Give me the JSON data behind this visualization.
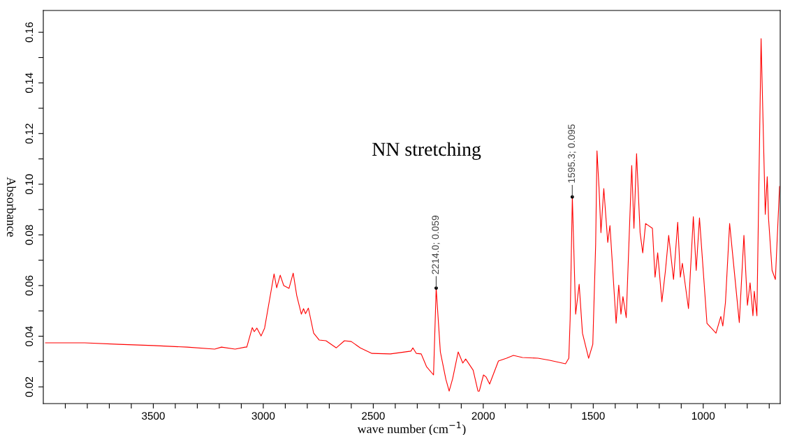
{
  "chart_data": {
    "type": "line",
    "xlabel": "wave number (cm$^{−1}$)",
    "ylabel": "Absorbance",
    "xlim": [
      4000,
      650
    ],
    "ylim": [
      0.0134,
      0.1686
    ],
    "xticks": [
      {
        "value": 3900,
        "label": null
      },
      {
        "value": 3800,
        "label": null
      },
      {
        "value": 3700,
        "label": null
      },
      {
        "value": 3600,
        "label": null
      },
      3500,
      {
        "value": 3400,
        "label": null
      },
      {
        "value": 3300,
        "label": null
      },
      {
        "value": 3200,
        "label": null
      },
      {
        "value": 3100,
        "label": null
      },
      3000,
      {
        "value": 2900,
        "label": null
      },
      {
        "value": 2800,
        "label": null
      },
      {
        "value": 2700,
        "label": null
      },
      {
        "value": 2600,
        "label": null
      },
      2500,
      {
        "value": 2400,
        "label": null
      },
      {
        "value": 2300,
        "label": null
      },
      {
        "value": 2200,
        "label": null
      },
      {
        "value": 2100,
        "label": null
      },
      2000,
      {
        "value": 1900,
        "label": null
      },
      {
        "value": 1800,
        "label": null
      },
      {
        "value": 1700,
        "label": null
      },
      {
        "value": 1600,
        "label": null
      },
      1500,
      {
        "value": 1400,
        "label": null
      },
      {
        "value": 1300,
        "label": null
      },
      {
        "value": 1200,
        "label": null
      },
      {
        "value": 1100,
        "label": null
      },
      1000,
      {
        "value": 900,
        "label": null
      },
      {
        "value": 800,
        "label": null
      },
      {
        "value": 700,
        "label": null
      }
    ],
    "yticks": [
      {
        "value": 0.02,
        "label": "0.02"
      },
      {
        "value": 0.03,
        "label": null
      },
      {
        "value": 0.04,
        "label": "0.04"
      },
      {
        "value": 0.05,
        "label": null
      },
      {
        "value": 0.06,
        "label": "0.06"
      },
      {
        "value": 0.07,
        "label": null
      },
      {
        "value": 0.08,
        "label": "0.08"
      },
      {
        "value": 0.09,
        "label": null
      },
      {
        "value": 0.1,
        "label": "0.10"
      },
      {
        "value": 0.11,
        "label": null
      },
      {
        "value": 0.12,
        "label": "0.12"
      },
      {
        "value": 0.13,
        "label": null
      },
      {
        "value": 0.14,
        "label": "0.14"
      },
      {
        "value": 0.15,
        "label": null
      },
      {
        "value": 0.16,
        "label": "0.16"
      }
    ],
    "grid": false,
    "marker": "none",
    "line_style": "solid",
    "annotations": [
      "NN stretching",
      {
        "text": "2214.0; 0.059",
        "x": 2214.0,
        "y": 0.059
      },
      {
        "text": "1595.3; 0.095",
        "x": 1595.3,
        "y": 0.095
      }
    ],
    "series": [
      {
        "color": "#ff0000",
        "x": [
          3990,
          3812,
          3657,
          3501,
          3346,
          3221,
          3190,
          3128,
          3082,
          3075,
          3050,
          3041,
          3029,
          3010,
          2994,
          2951,
          2939,
          2923,
          2907,
          2883,
          2864,
          2848,
          2827,
          2817,
          2808,
          2795,
          2771,
          2746,
          2715,
          2668,
          2631,
          2600,
          2559,
          2506,
          2422,
          2329,
          2320,
          2304,
          2282,
          2258,
          2226,
          2214,
          2195,
          2170,
          2155,
          2139,
          2114,
          2093,
          2080,
          2046,
          2024,
          2018,
          1999,
          1987,
          1971,
          1931,
          1894,
          1863,
          1822,
          1751,
          1698,
          1626,
          1611,
          1605,
          1595,
          1580,
          1564,
          1549,
          1521,
          1502,
          1489,
          1483,
          1474,
          1465,
          1452,
          1434,
          1424,
          1396,
          1384,
          1374,
          1365,
          1350,
          1325,
          1315,
          1303,
          1287,
          1275,
          1262,
          1231,
          1219,
          1207,
          1188,
          1172,
          1157,
          1135,
          1116,
          1104,
          1095,
          1067,
          1045,
          1032,
          1017,
          983,
          942,
          920,
          911,
          899,
          880,
          836,
          815,
          799,
          787,
          774,
          768,
          756,
          737,
          718,
          709,
          703,
          687,
          672,
          653
        ],
        "values": [
          0.0374,
          0.0374,
          0.0368,
          0.0363,
          0.0357,
          0.0349,
          0.0357,
          0.0349,
          0.0357,
          0.0357,
          0.0434,
          0.0418,
          0.0432,
          0.0401,
          0.0432,
          0.0646,
          0.0591,
          0.0641,
          0.06,
          0.0589,
          0.0649,
          0.0561,
          0.0487,
          0.0509,
          0.0489,
          0.0511,
          0.0412,
          0.0385,
          0.0382,
          0.0354,
          0.0382,
          0.0379,
          0.0354,
          0.0332,
          0.033,
          0.0341,
          0.0354,
          0.0332,
          0.033,
          0.028,
          0.0247,
          0.059,
          0.0338,
          0.023,
          0.0183,
          0.0233,
          0.0338,
          0.0294,
          0.031,
          0.0266,
          0.0183,
          0.0183,
          0.0247,
          0.0239,
          0.0211,
          0.0302,
          0.0313,
          0.0324,
          0.0316,
          0.0313,
          0.0305,
          0.0291,
          0.0313,
          0.0467,
          0.095,
          0.0487,
          0.0605,
          0.0412,
          0.0313,
          0.0368,
          0.0762,
          0.1132,
          0.0991,
          0.0809,
          0.0983,
          0.077,
          0.0837,
          0.0451,
          0.0602,
          0.0487,
          0.0556,
          0.0473,
          0.1074,
          0.0826,
          0.1121,
          0.0809,
          0.0729,
          0.0845,
          0.0826,
          0.0633,
          0.0729,
          0.0536,
          0.0657,
          0.0798,
          0.0624,
          0.085,
          0.0633,
          0.0688,
          0.0509,
          0.0872,
          0.066,
          0.0867,
          0.0451,
          0.0412,
          0.0478,
          0.044,
          0.0533,
          0.0845,
          0.0454,
          0.0798,
          0.0522,
          0.0611,
          0.0481,
          0.0578,
          0.0481,
          0.1575,
          0.0881,
          0.103,
          0.0864,
          0.066,
          0.0624,
          0.0991
        ]
      }
    ]
  }
}
